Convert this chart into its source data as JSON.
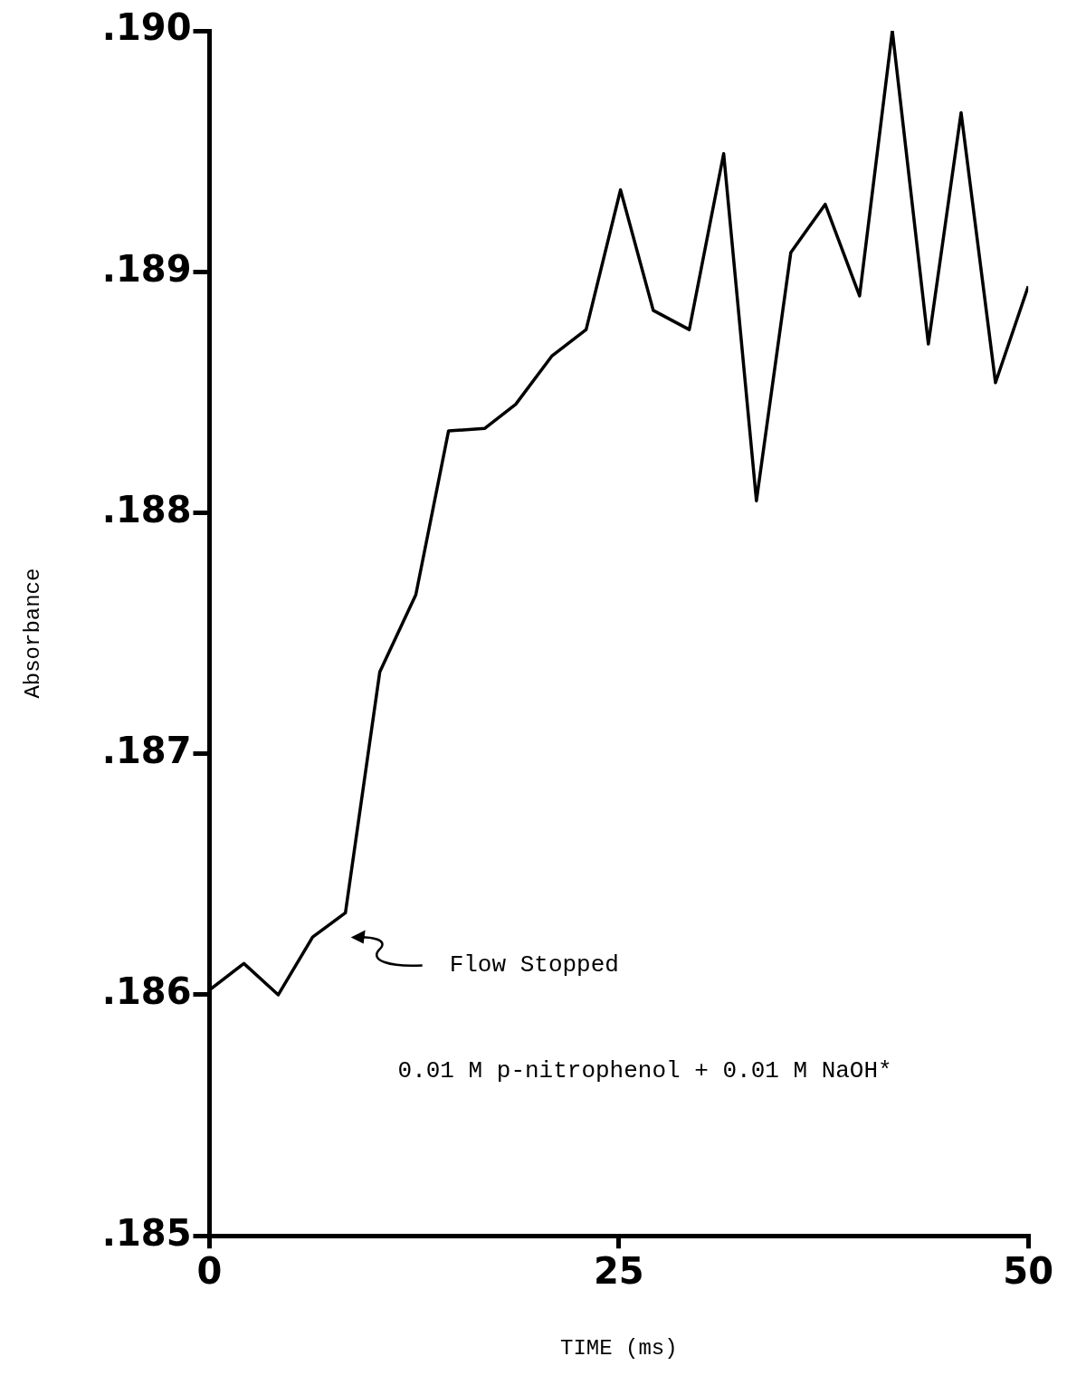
{
  "chart_data": {
    "type": "line",
    "xlabel": "TIME (ms)",
    "ylabel": "Absorbance",
    "x": [
      0,
      2.1,
      4.2,
      6.3,
      8.3,
      10.4,
      12.6,
      14.6,
      16.8,
      18.7,
      20.9,
      23.0,
      25.1,
      27.1,
      29.3,
      31.4,
      33.4,
      35.5,
      37.6,
      39.7,
      41.7,
      43.9,
      45.9,
      48.0,
      50.0
    ],
    "series": [
      {
        "color": "#000000",
        "values": [
          0.18602,
          0.18613,
          0.186,
          0.18624,
          0.18634,
          0.18734,
          0.18766,
          0.18834,
          0.18835,
          0.18845,
          0.18865,
          0.18876,
          0.18934,
          0.18884,
          0.18876,
          0.18949,
          0.18805,
          0.18908,
          0.18928,
          0.1889,
          0.19,
          0.1887,
          0.18966,
          0.18854,
          0.18894
        ]
      }
    ],
    "xlim": [
      0,
      50
    ],
    "xticks": [
      0,
      25,
      50
    ],
    "ylim": [
      0.185,
      0.19
    ],
    "yticks": [
      {
        "value": 0.185,
        "label": ".185"
      },
      {
        "value": 0.186,
        "label": ".186"
      },
      {
        "value": 0.187,
        "label": ".187"
      },
      {
        "value": 0.188,
        "label": ".188"
      },
      {
        "value": 0.189,
        "label": ".189"
      },
      {
        "value": 0.19,
        "label": ".190"
      }
    ],
    "grid": false,
    "legend": false,
    "marker": "none",
    "line_style": "solid",
    "annotations": [
      "Flow Stopped",
      "0.01 M p-nitrophenol + 0.01 M NaOH*"
    ]
  }
}
